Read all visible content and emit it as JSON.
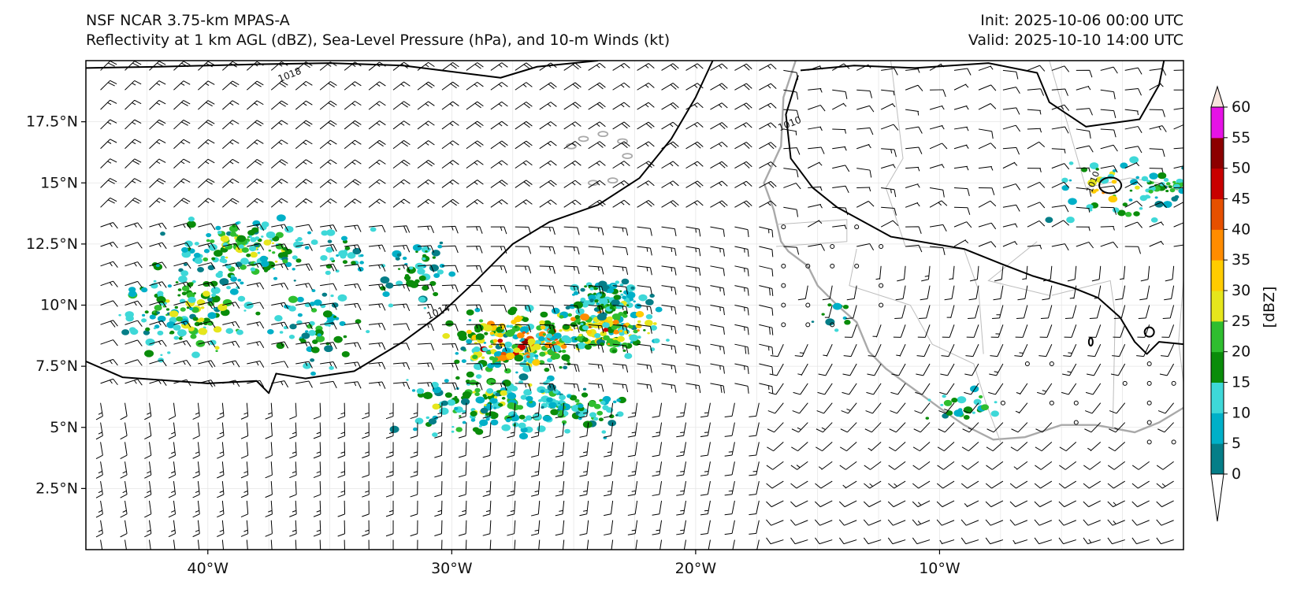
{
  "header": {
    "title": "NSF NCAR 3.75-km MPAS-A",
    "subtitle": "Reflectivity at 1 km AGL (dBZ), Sea-Level Pressure (hPa), and 10-m Winds (kt)",
    "init": "Init: 2025-10-06 00:00 UTC",
    "valid": "Valid: 2025-10-10 14:00 UTC"
  },
  "map": {
    "lon_range": [
      -45,
      0
    ],
    "lat_range": [
      0,
      20
    ],
    "lat_ticks": [
      {
        "value": 2.5,
        "label": "2.5°N"
      },
      {
        "value": 5,
        "label": "5°N"
      },
      {
        "value": 7.5,
        "label": "7.5°N"
      },
      {
        "value": 10,
        "label": "10°N"
      },
      {
        "value": 12.5,
        "label": "12.5°N"
      },
      {
        "value": 15,
        "label": "15°N"
      },
      {
        "value": 17.5,
        "label": "17.5°N"
      }
    ],
    "lon_ticks": [
      {
        "value": -40,
        "label": "40°W"
      },
      {
        "value": -30,
        "label": "30°W"
      },
      {
        "value": -20,
        "label": "20°W"
      },
      {
        "value": -10,
        "label": "10°W"
      }
    ],
    "isobars": [
      {
        "label": "1018",
        "label_at": [
          -36.6,
          19.3
        ],
        "points": [
          [
            -45,
            19.7
          ],
          [
            -42,
            19.75
          ],
          [
            -38,
            19.85
          ],
          [
            -35,
            19.9
          ],
          [
            -32,
            19.8
          ],
          [
            -28,
            19.3
          ],
          [
            -26.5,
            19.75
          ],
          [
            -24,
            20
          ]
        ]
      },
      {
        "label": "1014",
        "label_at": [
          -30.5,
          9.6
        ],
        "points": [
          [
            -45,
            7.7
          ],
          [
            -43.5,
            7.05
          ],
          [
            -40,
            6.8
          ],
          [
            -38,
            6.9
          ],
          [
            -37.5,
            6.4
          ],
          [
            -37.2,
            7.2
          ],
          [
            -36,
            7.0
          ],
          [
            -34,
            7.3
          ],
          [
            -32,
            8.5
          ],
          [
            -30.5,
            9.6
          ],
          [
            -29,
            11.0
          ],
          [
            -27.5,
            12.5
          ],
          [
            -26,
            13.4
          ],
          [
            -24,
            14.1
          ],
          [
            -22.3,
            15.2
          ],
          [
            -21,
            16.8
          ],
          [
            -20,
            18.5
          ],
          [
            -19.3,
            20
          ]
        ]
      },
      {
        "label": "1010",
        "label_at": [
          -16.1,
          17.3
        ],
        "points": [
          [
            -15.8,
            19.4
          ],
          [
            -16.3,
            17.8
          ],
          [
            -16.1,
            16.0
          ],
          [
            -15.2,
            14.8
          ],
          [
            -14.2,
            14.0
          ],
          [
            -12.0,
            12.8
          ],
          [
            -9.0,
            12.3
          ],
          [
            -7.5,
            11.7
          ],
          [
            -6.2,
            11.2
          ],
          [
            -4.5,
            10.7
          ],
          [
            -3.5,
            10.3
          ],
          [
            -2.6,
            9.5
          ],
          [
            -2.0,
            8.5
          ],
          [
            -1.5,
            8.0
          ],
          [
            -1.0,
            8.5
          ],
          [
            0,
            8.4
          ]
        ]
      },
      {
        "label": "",
        "label_at": null,
        "points": [
          [
            -15.7,
            19.6
          ],
          [
            -13.5,
            19.8
          ],
          [
            -11.0,
            19.7
          ],
          [
            -8.0,
            19.9
          ],
          [
            -6.0,
            19.5
          ],
          [
            -5.5,
            18.3
          ],
          [
            -4.0,
            17.3
          ],
          [
            -1.8,
            17.6
          ],
          [
            -1.0,
            19.0
          ],
          [
            -0.8,
            20
          ]
        ]
      }
    ],
    "isobar_1010_east": {
      "label": "1010",
      "label_at": [
        -3.6,
        15.0
      ]
    },
    "colorbar": {
      "unit_label": "[dBZ]",
      "levels": [
        0,
        5,
        10,
        15,
        20,
        25,
        30,
        35,
        40,
        45,
        50,
        55,
        60
      ],
      "tick_labels": [
        "0",
        "5",
        "10",
        "15",
        "20",
        "25",
        "30",
        "35",
        "40",
        "45",
        "50",
        "55",
        "60"
      ],
      "colors": [
        "#057e88",
        "#00b0c8",
        "#3ed8d8",
        "#0a8c0a",
        "#2fbe2f",
        "#e6e61c",
        "#ffcc00",
        "#ff8c00",
        "#e65000",
        "#c80000",
        "#8c0000",
        "#e612e6",
        "#f7e4dc"
      ],
      "extend": "both"
    }
  }
}
